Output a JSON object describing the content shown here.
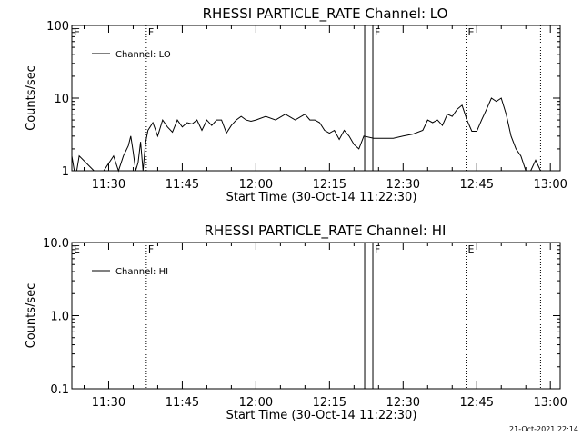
{
  "stamp": "21-Oct-2021 22:14",
  "chart_data": [
    {
      "type": "line",
      "title": "RHESSI PARTICLE_RATE Channel: LO",
      "xlabel": "Start Time (30-Oct-14 11:22:30)",
      "ylabel": "Counts/sec",
      "y_scale": "log",
      "ylim": [
        1,
        100
      ],
      "y_ticks": [
        {
          "value": 1,
          "label": "1"
        },
        {
          "value": 10,
          "label": "10"
        },
        {
          "value": 100,
          "label": "100"
        }
      ],
      "xlim": [
        "11:22:30",
        "13:02:00"
      ],
      "x_ticks": [
        "11:30",
        "11:45",
        "12:00",
        "12:15",
        "12:30",
        "12:45",
        "13:00"
      ],
      "legend": {
        "position": "top-left",
        "entries": [
          "Channel: LO"
        ]
      },
      "grid": false,
      "markers": [
        {
          "label": "E",
          "time": "11:22:30",
          "style": "none"
        },
        {
          "label": "F",
          "time": "11:37:40",
          "style": "dotted"
        },
        {
          "label": "",
          "time": "12:22:10",
          "style": "solid"
        },
        {
          "label": "F",
          "time": "12:23:50",
          "style": "solid"
        },
        {
          "label": "E",
          "time": "12:42:50",
          "style": "dotted"
        },
        {
          "label": "",
          "time": "12:58:00",
          "style": "dotted"
        }
      ],
      "series": [
        {
          "name": "Channel: LO",
          "x": [
            "11:22:30",
            "11:23",
            "11:23:30",
            "11:24",
            "11:27",
            "11:29",
            "11:31",
            "11:32",
            "11:33",
            "11:34",
            "11:34:30",
            "11:35",
            "11:35:30",
            "11:36",
            "11:36:30",
            "11:37",
            "11:37:30",
            "11:38",
            "11:39",
            "11:40",
            "11:41",
            "11:42",
            "11:43",
            "11:44",
            "11:45",
            "11:46",
            "11:47",
            "11:48",
            "11:49",
            "11:50",
            "11:51",
            "11:52",
            "11:53",
            "11:54",
            "11:55",
            "11:56",
            "11:57",
            "11:58",
            "11:59",
            "12:00",
            "12:02",
            "12:04",
            "12:06",
            "12:08",
            "12:10",
            "12:11",
            "12:12",
            "12:13",
            "12:14",
            "12:15",
            "12:16",
            "12:17",
            "12:18",
            "12:19",
            "12:20",
            "12:21",
            "12:22",
            "12:24",
            "12:26",
            "12:28",
            "12:30",
            "12:32",
            "12:34",
            "12:35",
            "12:36",
            "12:37",
            "12:38",
            "12:39",
            "12:40",
            "12:41",
            "12:42",
            "12:43",
            "12:44",
            "12:45",
            "12:46",
            "12:47",
            "12:48",
            "12:49",
            "12:50",
            "12:51",
            "12:52",
            "12:53",
            "12:54",
            "12:55",
            "12:56",
            "12:57",
            "12:58"
          ],
          "y": [
            1.6,
            1.0,
            1.0,
            1.6,
            1.0,
            1.0,
            1.6,
            1.0,
            1.6,
            2.2,
            3.0,
            1.8,
            1.0,
            1.3,
            2.5,
            1.0,
            2.4,
            3.6,
            4.6,
            3.0,
            5.0,
            4.0,
            3.4,
            5.0,
            4.0,
            4.6,
            4.4,
            5.0,
            3.6,
            5.0,
            4.2,
            5.0,
            5.0,
            3.3,
            4.2,
            5.0,
            5.6,
            5.0,
            4.8,
            5.0,
            5.6,
            5.0,
            6.0,
            5.0,
            6.0,
            5.0,
            5.0,
            4.6,
            3.6,
            3.3,
            3.6,
            2.7,
            3.6,
            3.0,
            2.3,
            2.0,
            3.0,
            2.8,
            2.8,
            2.8,
            3.0,
            3.2,
            3.6,
            5.0,
            4.6,
            5.0,
            4.2,
            6.0,
            5.6,
            7.0,
            8.0,
            5.0,
            3.5,
            3.5,
            5.0,
            7.0,
            10.0,
            9.0,
            10.0,
            6.0,
            3.0,
            2.0,
            1.6,
            1.0,
            1.0,
            1.4,
            1.0
          ]
        }
      ]
    },
    {
      "type": "line",
      "title": "RHESSI PARTICLE_RATE Channel: HI",
      "xlabel": "Start Time (30-Oct-14 11:22:30)",
      "ylabel": "Counts/sec",
      "y_scale": "log",
      "ylim": [
        0.1,
        10
      ],
      "y_ticks": [
        {
          "value": 0.1,
          "label": "0.1"
        },
        {
          "value": 1,
          "label": "1.0"
        },
        {
          "value": 10,
          "label": "10.0"
        }
      ],
      "xlim": [
        "11:22:30",
        "13:02:00"
      ],
      "x_ticks": [
        "11:30",
        "11:45",
        "12:00",
        "12:15",
        "12:30",
        "12:45",
        "13:00"
      ],
      "legend": {
        "position": "top-left",
        "entries": [
          "Channel: HI"
        ]
      },
      "grid": false,
      "markers": [
        {
          "label": "E",
          "time": "11:22:30",
          "style": "none"
        },
        {
          "label": "F",
          "time": "11:37:40",
          "style": "dotted"
        },
        {
          "label": "",
          "time": "12:22:10",
          "style": "solid"
        },
        {
          "label": "F",
          "time": "12:23:50",
          "style": "solid"
        },
        {
          "label": "E",
          "time": "12:42:50",
          "style": "dotted"
        },
        {
          "label": "",
          "time": "12:58:00",
          "style": "dotted"
        }
      ],
      "series": [
        {
          "name": "Channel: HI",
          "x": [],
          "y": []
        }
      ]
    }
  ]
}
